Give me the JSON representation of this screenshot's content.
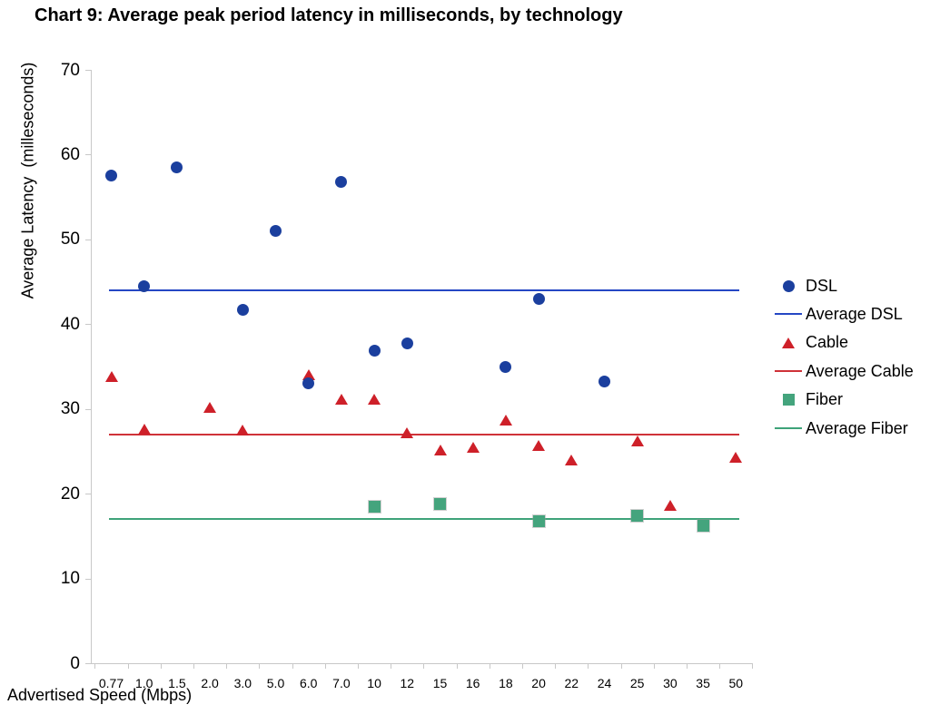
{
  "title": "Chart 9: Average peak period latency in milliseconds, by technology",
  "chart_data": {
    "type": "scatter",
    "title": "Chart 9: Average peak period latency in milliseconds, by technology",
    "xlabel": "Advertised Speed (Mbps)",
    "ylabel": "Average Latency  (milleseconds)",
    "ylim": [
      0,
      70
    ],
    "yticks": [
      0,
      10,
      20,
      30,
      40,
      50,
      60,
      70
    ],
    "grid": false,
    "legend_position": "right",
    "categories": [
      "0.77",
      "1.0",
      "1.5",
      "2.0",
      "3.0",
      "5.0",
      "6.0",
      "7.0",
      "10",
      "12",
      "15",
      "16",
      "18",
      "20",
      "22",
      "24",
      "25",
      "30",
      "35",
      "50"
    ],
    "series": [
      {
        "name": "DSL",
        "marker": "circle",
        "color": "#1B3F9E",
        "values": [
          57.5,
          44.5,
          58.5,
          null,
          41.7,
          51.0,
          33.0,
          56.8,
          36.9,
          37.7,
          null,
          null,
          34.9,
          43.0,
          null,
          33.2,
          null,
          null,
          null,
          null
        ]
      },
      {
        "name": "Cable",
        "marker": "triangle",
        "color": "#CE2029",
        "values": [
          33.8,
          27.6,
          null,
          30.2,
          27.5,
          null,
          34.0,
          31.2,
          31.2,
          27.2,
          25.2,
          25.5,
          28.7,
          25.7,
          24.0,
          null,
          26.2,
          18.6,
          null,
          24.3
        ]
      },
      {
        "name": "Fiber",
        "marker": "square",
        "color": "#44A47D",
        "values": [
          null,
          null,
          null,
          null,
          null,
          null,
          null,
          null,
          18.5,
          null,
          18.8,
          null,
          null,
          16.8,
          null,
          null,
          17.4,
          null,
          16.2,
          null
        ]
      }
    ],
    "average_lines": [
      {
        "name": "Average DSL",
        "value": 44,
        "color": "#2547C4"
      },
      {
        "name": "Average Cable",
        "value": 27,
        "color": "#CF3238"
      },
      {
        "name": "Average Fiber",
        "value": 17,
        "color": "#3EA379"
      }
    ],
    "legend": [
      {
        "label": "DSL",
        "swatch": "circle",
        "color": "#1B3F9E"
      },
      {
        "label": "Average DSL",
        "swatch": "line",
        "color": "#2547C4"
      },
      {
        "label": "Cable",
        "swatch": "triangle",
        "color": "#CE2029"
      },
      {
        "label": "Average Cable",
        "swatch": "line",
        "color": "#CF3238"
      },
      {
        "label": "Fiber",
        "swatch": "square",
        "color": "#44A47D"
      },
      {
        "label": "Average Fiber",
        "swatch": "line",
        "color": "#3EA379"
      }
    ]
  }
}
